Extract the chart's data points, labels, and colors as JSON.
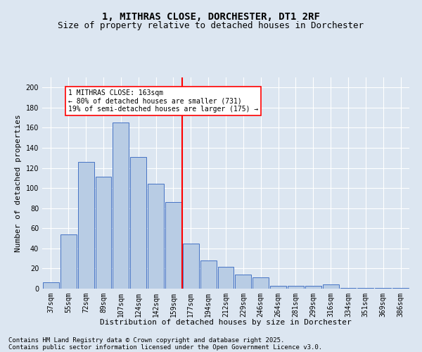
{
  "title": "1, MITHRAS CLOSE, DORCHESTER, DT1 2RF",
  "subtitle": "Size of property relative to detached houses in Dorchester",
  "xlabel": "Distribution of detached houses by size in Dorchester",
  "ylabel": "Number of detached properties",
  "footnote1": "Contains HM Land Registry data © Crown copyright and database right 2025.",
  "footnote2": "Contains public sector information licensed under the Open Government Licence v3.0.",
  "categories": [
    "37sqm",
    "55sqm",
    "72sqm",
    "89sqm",
    "107sqm",
    "124sqm",
    "142sqm",
    "159sqm",
    "177sqm",
    "194sqm",
    "212sqm",
    "229sqm",
    "246sqm",
    "264sqm",
    "281sqm",
    "299sqm",
    "316sqm",
    "334sqm",
    "351sqm",
    "369sqm",
    "386sqm"
  ],
  "values": [
    6,
    54,
    126,
    111,
    165,
    131,
    104,
    86,
    45,
    28,
    22,
    14,
    11,
    3,
    3,
    3,
    4,
    1,
    1,
    1,
    1
  ],
  "bar_color": "#b8cce4",
  "bar_edge_color": "#4472c4",
  "background_color": "#dce6f1",
  "plot_bg_color": "#dce6f1",
  "grid_color": "#ffffff",
  "vline_color": "red",
  "vline_pos": 7.5,
  "annotation_text": "1 MITHRAS CLOSE: 163sqm\n← 80% of detached houses are smaller (731)\n19% of semi-detached houses are larger (175) →",
  "annotation_box_edge_color": "red",
  "annotation_box_fill": "white",
  "ylim": [
    0,
    210
  ],
  "yticks": [
    0,
    20,
    40,
    60,
    80,
    100,
    120,
    140,
    160,
    180,
    200
  ],
  "title_fontsize": 10,
  "subtitle_fontsize": 9,
  "xlabel_fontsize": 8,
  "ylabel_fontsize": 8,
  "footnote_fontsize": 6.5,
  "tick_fontsize": 7,
  "annot_fontsize": 7
}
